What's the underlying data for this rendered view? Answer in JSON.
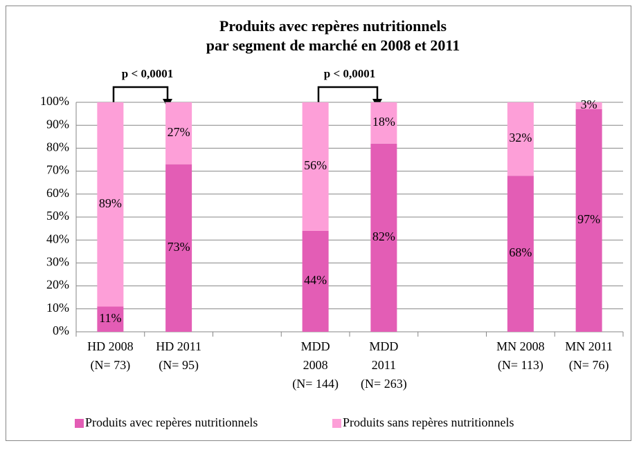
{
  "chart_data": {
    "type": "stacked_bar",
    "title": "Produits avec repères nutritionnels\npar segment de marché en 2008 et 2011",
    "categories": [
      "HD 2008\n(N= 73)",
      "HD 2011\n(N= 95)",
      null,
      "MDD\n2008\n(N= 144)",
      "MDD\n2011\n(N= 263)",
      null,
      "MN 2008\n(N= 113)",
      "MN 2011\n(N= 76)"
    ],
    "series": [
      {
        "name": "Produits avec repères nutritionnels",
        "color": "#e35db5",
        "values": [
          11,
          73,
          null,
          44,
          82,
          null,
          68,
          97
        ],
        "value_labels": [
          "11%",
          "73%",
          null,
          "44%",
          "82%",
          null,
          "68%",
          "97%"
        ]
      },
      {
        "name": "Produits sans repères nutritionnels",
        "color": "#fd9fd8",
        "values": [
          89,
          27,
          null,
          56,
          18,
          null,
          32,
          3
        ],
        "value_labels": [
          "89%",
          "27%",
          null,
          "56%",
          "18%",
          null,
          "32%",
          "3%"
        ]
      }
    ],
    "ylim": [
      0,
      100
    ],
    "yticks": [
      {
        "value": 0,
        "label": "0%"
      },
      {
        "value": 10,
        "label": "10%"
      },
      {
        "value": 20,
        "label": "20%"
      },
      {
        "value": 30,
        "label": "30%"
      },
      {
        "value": 40,
        "label": "40%"
      },
      {
        "value": 50,
        "label": "50%"
      },
      {
        "value": 60,
        "label": "60%"
      },
      {
        "value": 70,
        "label": "70%"
      },
      {
        "value": 80,
        "label": "80%"
      },
      {
        "value": 90,
        "label": "90%"
      },
      {
        "value": 100,
        "label": "100%"
      }
    ],
    "grid": true,
    "legend": "bottom",
    "annotations": [
      "p < 0,0001",
      "p < 0,0001"
    ]
  }
}
